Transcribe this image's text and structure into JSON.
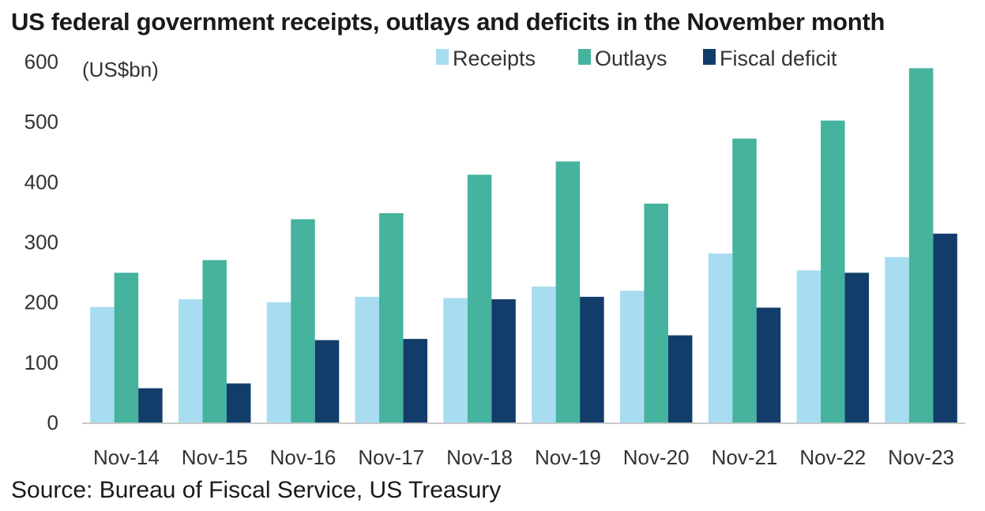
{
  "title": "US federal government receipts, outlays and deficits in the November month",
  "source": "Source: Bureau of Fiscal Service, US Treasury",
  "chart_data": {
    "type": "bar",
    "title": "US federal government receipts, outlays and deficits in the November month",
    "unit_label": "(US$bn)",
    "categories": [
      "Nov-14",
      "Nov-15",
      "Nov-16",
      "Nov-17",
      "Nov-18",
      "Nov-19",
      "Nov-20",
      "Nov-21",
      "Nov-22",
      "Nov-23"
    ],
    "series": [
      {
        "name": "Receipts",
        "color": "#a8dcf0",
        "values": [
          192,
          205,
          200,
          209,
          207,
          226,
          219,
          281,
          253,
          275
        ]
      },
      {
        "name": "Outlays",
        "color": "#45b39d",
        "values": [
          249,
          270,
          338,
          348,
          412,
          434,
          364,
          472,
          502,
          589
        ]
      },
      {
        "name": "Fiscal deficit",
        "color": "#123d6b",
        "values": [
          57,
          65,
          137,
          139,
          205,
          209,
          145,
          191,
          249,
          314
        ]
      }
    ],
    "ylim": [
      0,
      600
    ],
    "yticks": [
      0,
      100,
      200,
      300,
      400,
      500,
      600
    ],
    "legend_position": "top-right",
    "grid": false
  }
}
